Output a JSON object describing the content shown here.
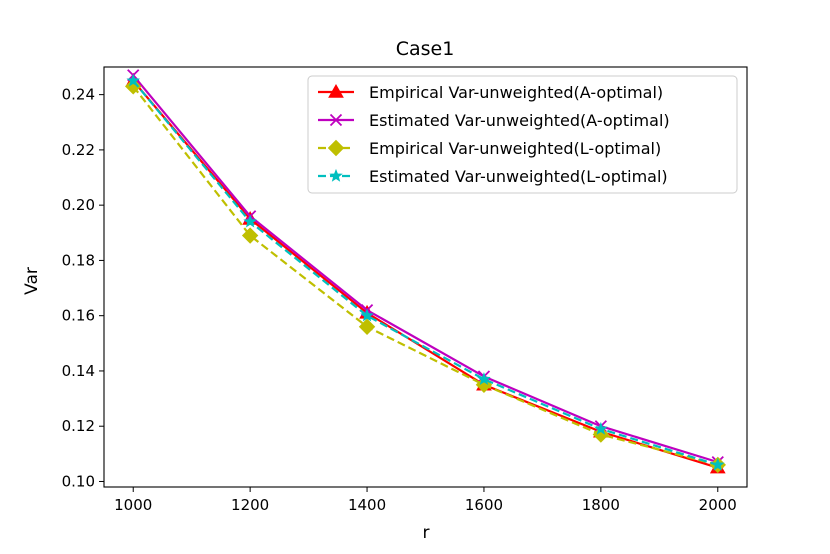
{
  "chart_data": {
    "type": "line",
    "title": "Case1",
    "xlabel": "r",
    "ylabel": "Var",
    "x": [
      1000,
      1200,
      1400,
      1600,
      1800,
      2000
    ],
    "xlim": [
      950,
      2050
    ],
    "ylim": [
      0.098,
      0.25
    ],
    "xticks": [
      1000,
      1200,
      1400,
      1600,
      1800,
      2000
    ],
    "yticks": [
      0.1,
      0.12,
      0.14,
      0.16,
      0.18,
      0.2,
      0.22,
      0.24
    ],
    "ytick_labels": [
      "0.10",
      "0.12",
      "0.14",
      "0.16",
      "0.18",
      "0.20",
      "0.22",
      "0.24"
    ],
    "grid": false,
    "legend_position": "top-right",
    "series": [
      {
        "name": "Empirical Var-unweighted(A-optimal)",
        "values": [
          0.245,
          0.195,
          0.161,
          0.135,
          0.118,
          0.105
        ],
        "color": "#ff0000",
        "line_style": "solid",
        "marker": "triangle"
      },
      {
        "name": "Estimated Var-unweighted(A-optimal)",
        "values": [
          0.247,
          0.196,
          0.162,
          0.138,
          0.12,
          0.107
        ],
        "color": "#bf00bf",
        "line_style": "solid",
        "marker": "x"
      },
      {
        "name": "Empirical Var-unweighted(L-optimal)",
        "values": [
          0.243,
          0.189,
          0.156,
          0.135,
          0.117,
          0.106
        ],
        "color": "#bfbf00",
        "line_style": "dashed",
        "marker": "diamond"
      },
      {
        "name": "Estimated Var-unweighted(L-optimal)",
        "values": [
          0.245,
          0.194,
          0.16,
          0.137,
          0.119,
          0.106
        ],
        "color": "#00bfbf",
        "line_style": "dashed",
        "marker": "star"
      }
    ]
  }
}
